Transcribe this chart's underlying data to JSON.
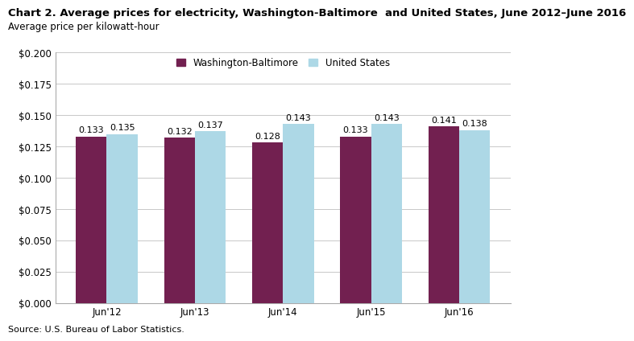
{
  "title": "Chart 2. Average prices for electricity, Washington-Baltimore  and United States, June 2012–June 2016",
  "subtitle": "Average price per kilowatt-hour",
  "source": "Source: U.S. Bureau of Labor Statistics.",
  "categories": [
    "Jun'12",
    "Jun'13",
    "Jun'14",
    "Jun'15",
    "Jun'16"
  ],
  "washington_baltimore": [
    0.133,
    0.132,
    0.128,
    0.133,
    0.141
  ],
  "united_states": [
    0.135,
    0.137,
    0.143,
    0.143,
    0.138
  ],
  "wb_color": "#722050",
  "us_color": "#ADD8E6",
  "ylim": [
    0.0,
    0.2
  ],
  "yticks": [
    0.0,
    0.025,
    0.05,
    0.075,
    0.1,
    0.125,
    0.15,
    0.175,
    0.2
  ],
  "legend_labels": [
    "Washington-Baltimore",
    "United States"
  ],
  "bar_width": 0.35,
  "title_fontsize": 9.5,
  "subtitle_fontsize": 8.5,
  "tick_fontsize": 8.5,
  "annotation_fontsize": 8,
  "source_fontsize": 8,
  "background_color": "#ffffff",
  "grid_color": "#c8c8c8",
  "border_color": "#aaaaaa"
}
